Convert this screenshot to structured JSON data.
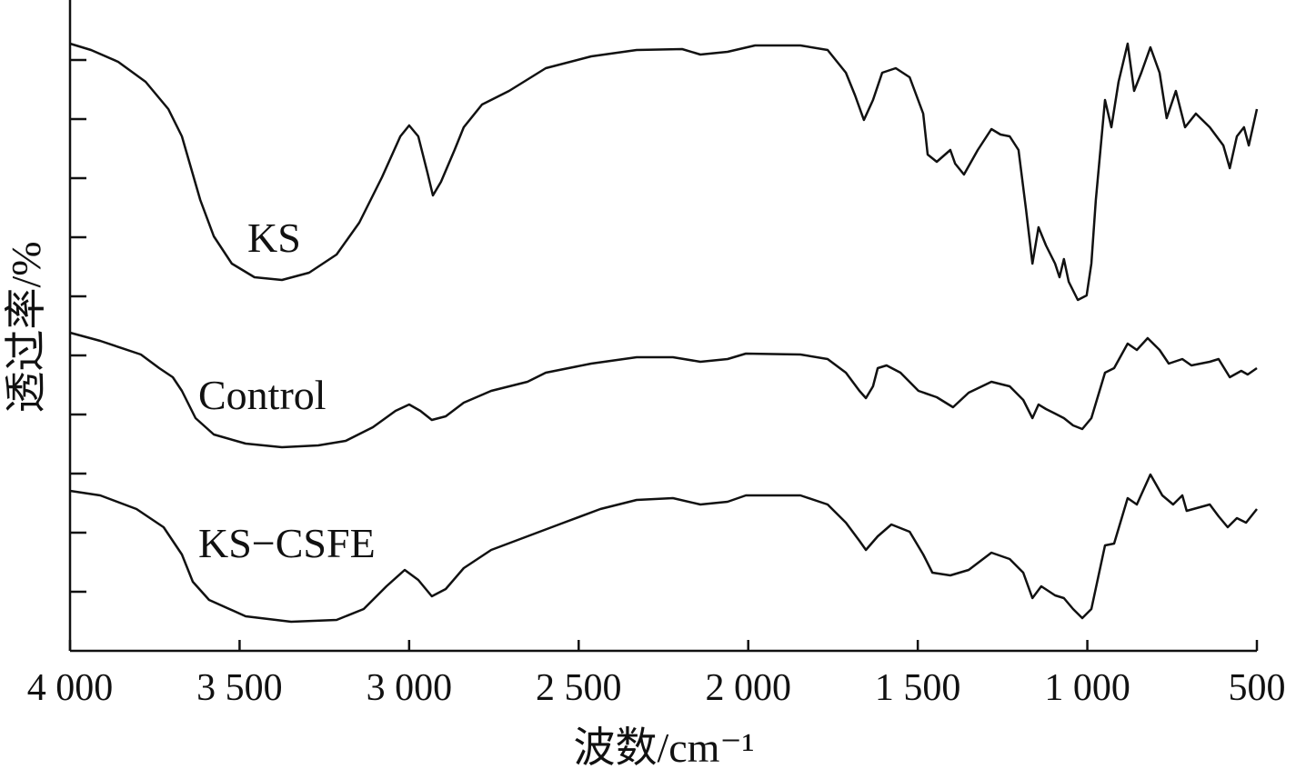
{
  "chart_data": {
    "type": "line",
    "xlabel": "波数/cm⁻¹",
    "ylabel": "透过率/%",
    "xlim": [
      4000,
      500
    ],
    "ylim": [
      0,
      716
    ],
    "xticks": [
      {
        "value": 4000,
        "label": "4 000"
      },
      {
        "value": 3500,
        "label": "3 500"
      },
      {
        "value": 3000,
        "label": "3 000"
      },
      {
        "value": 2500,
        "label": "2 500"
      },
      {
        "value": 2000,
        "label": "2 000"
      },
      {
        "value": 1500,
        "label": "1 500"
      },
      {
        "value": 1000,
        "label": "1 000"
      },
      500
    ],
    "yticks": [
      65,
      130,
      195,
      260,
      325,
      390,
      455,
      520,
      585,
      650
    ],
    "series": [
      {
        "name": "KS",
        "color": "#111111",
        "x": [
          4000,
          3938,
          3858,
          3777,
          3710,
          3670,
          3643,
          3616,
          3576,
          3523,
          3456,
          3375,
          3295,
          3214,
          3147,
          3080,
          3026,
          3000,
          2973,
          2946,
          2930,
          2906,
          2866,
          2839,
          2785,
          2705,
          2597,
          2463,
          2329,
          2195,
          2141,
          2061,
          1980,
          1846,
          1766,
          1712,
          1685,
          1659,
          1632,
          1605,
          1565,
          1524,
          1484,
          1471,
          1444,
          1404,
          1390,
          1364,
          1323,
          1283,
          1256,
          1229,
          1203,
          1181,
          1162,
          1144,
          1122,
          1095,
          1082,
          1069,
          1055,
          1028,
          1002,
          988,
          975,
          948,
          929,
          908,
          881,
          862,
          841,
          814,
          787,
          766,
          739,
          712,
          680,
          639,
          599,
          580,
          559,
          538,
          524,
          500
        ],
        "values": [
          668,
          661,
          648,
          626,
          596,
          566,
          531,
          496,
          456,
          426,
          411,
          408,
          416,
          436,
          471,
          521,
          566,
          578,
          566,
          526,
          501,
          516,
          551,
          576,
          601,
          616,
          641,
          654,
          661,
          662,
          656,
          659,
          666,
          666,
          661,
          636,
          611,
          584,
          606,
          636,
          641,
          631,
          591,
          546,
          538,
          551,
          536,
          524,
          551,
          574,
          568,
          566,
          551,
          486,
          426,
          466,
          446,
          426,
          411,
          431,
          406,
          386,
          391,
          426,
          496,
          606,
          576,
          626,
          668,
          616,
          636,
          664,
          636,
          586,
          616,
          576,
          591,
          576,
          556,
          531,
          566,
          576,
          556,
          596
        ]
      },
      {
        "name": "Control",
        "color": "#111111",
        "x": [
          4000,
          3911,
          3791,
          3737,
          3697,
          3670,
          3630,
          3576,
          3482,
          3375,
          3268,
          3187,
          3107,
          3040,
          3000,
          2967,
          2933,
          2892,
          2839,
          2758,
          2651,
          2597,
          2463,
          2329,
          2222,
          2141,
          2061,
          2007,
          1846,
          1766,
          1712,
          1672,
          1653,
          1632,
          1618,
          1592,
          1551,
          1498,
          1444,
          1396,
          1350,
          1283,
          1229,
          1189,
          1162,
          1144,
          1122,
          1095,
          1069,
          1042,
          1015,
          988,
          948,
          921,
          881,
          854,
          822,
          787,
          760,
          720,
          693,
          639,
          613,
          580,
          546,
          527,
          500
        ],
        "values": [
          350,
          341,
          326,
          311,
          301,
          286,
          256,
          238,
          228,
          224,
          226,
          231,
          246,
          264,
          271,
          264,
          254,
          258,
          273,
          286,
          296,
          306,
          316,
          323,
          323,
          318,
          321,
          327,
          326,
          321,
          306,
          286,
          278,
          291,
          311,
          314,
          306,
          286,
          279,
          268,
          284,
          296,
          291,
          276,
          256,
          271,
          266,
          261,
          256,
          248,
          244,
          256,
          306,
          311,
          338,
          331,
          344,
          331,
          316,
          321,
          314,
          318,
          321,
          301,
          308,
          304,
          311
        ]
      },
      {
        "name": "KS−CSFE",
        "color": "#111111",
        "x": [
          4000,
          3911,
          3804,
          3724,
          3670,
          3638,
          3590,
          3482,
          3348,
          3214,
          3134,
          3067,
          3013,
          2973,
          2933,
          2892,
          2839,
          2758,
          2651,
          2544,
          2436,
          2329,
          2222,
          2141,
          2061,
          2007,
          1846,
          1766,
          1712,
          1672,
          1653,
          1618,
          1578,
          1524,
          1484,
          1457,
          1404,
          1350,
          1283,
          1229,
          1189,
          1162,
          1136,
          1095,
          1069,
          1042,
          1015,
          988,
          948,
          921,
          881,
          854,
          814,
          779,
          747,
          720,
          707,
          639,
          613,
          586,
          559,
          532,
          500
        ],
        "values": [
          176,
          171,
          156,
          136,
          106,
          76,
          56,
          38,
          32,
          34,
          46,
          71,
          89,
          78,
          60,
          68,
          91,
          111,
          126,
          141,
          156,
          166,
          168,
          161,
          164,
          171,
          171,
          161,
          141,
          121,
          111,
          126,
          139,
          131,
          106,
          86,
          83,
          89,
          108,
          101,
          86,
          58,
          71,
          61,
          58,
          46,
          36,
          46,
          116,
          118,
          168,
          161,
          194,
          171,
          161,
          171,
          154,
          161,
          148,
          136,
          146,
          141,
          156
        ]
      }
    ]
  }
}
